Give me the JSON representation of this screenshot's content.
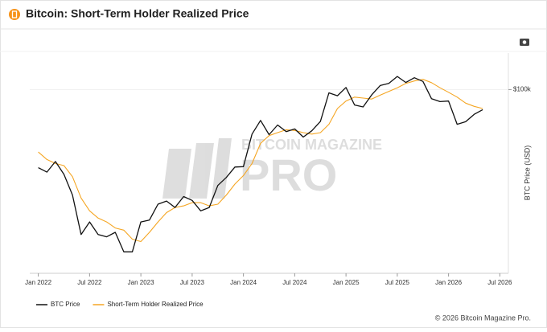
{
  "chart_data": {
    "type": "line",
    "title": "Bitcoin: Short-Term Holder Realized Price",
    "y_label": "BTC Price (USD)",
    "watermark": [
      "BITCOIN MAGAZINE",
      "PRO"
    ],
    "footer": "© 2026 Bitcoin Magazine Pro.",
    "log_scale": true,
    "x": [
      "2022-01",
      "2022-02",
      "2022-03",
      "2022-04",
      "2022-05",
      "2022-06",
      "2022-07",
      "2022-08",
      "2022-09",
      "2022-10",
      "2022-11",
      "2022-12",
      "2023-01",
      "2023-02",
      "2023-03",
      "2023-04",
      "2023-05",
      "2023-06",
      "2023-07",
      "2023-08",
      "2023-09",
      "2023-10",
      "2023-11",
      "2023-12",
      "2024-01",
      "2024-02",
      "2024-03",
      "2024-04",
      "2024-05",
      "2024-06",
      "2024-07",
      "2024-08",
      "2024-09",
      "2024-10",
      "2024-11",
      "2024-12",
      "2025-01",
      "2025-02",
      "2025-03",
      "2025-04",
      "2025-05",
      "2025-06",
      "2025-07",
      "2025-08",
      "2025-09",
      "2025-10",
      "2025-11",
      "2025-12",
      "2026-01",
      "2026-02",
      "2026-03",
      "2026-04",
      "2026-05"
    ],
    "series": [
      {
        "name": "BTC Price",
        "color": "#111111",
        "values": [
          42000,
          40000,
          45000,
          39000,
          31000,
          20000,
          23000,
          20000,
          19500,
          20500,
          16500,
          16500,
          23000,
          23500,
          28000,
          29000,
          27000,
          30500,
          29200,
          26000,
          27000,
          34500,
          37700,
          42300,
          42500,
          61000,
          71000,
          60600,
          67500,
          62700,
          64600,
          59000,
          63300,
          70200,
          96400,
          93400,
          102400,
          84300,
          82500,
          94200,
          104600,
          107100,
          115700,
          108200,
          114000,
          109500,
          90400,
          87500,
          88000,
          68000,
          70000,
          76000,
          80000
        ]
      },
      {
        "name": "Short-Term Holder Realized Price",
        "color": "#f5a623",
        "values": [
          50000,
          46000,
          44000,
          43000,
          38000,
          30000,
          26000,
          24000,
          23000,
          21500,
          21000,
          19000,
          18500,
          20500,
          23000,
          25500,
          27000,
          27500,
          28500,
          28500,
          27500,
          28000,
          31000,
          35000,
          38500,
          44000,
          55000,
          60000,
          62000,
          64000,
          63500,
          62000,
          61000,
          62000,
          68000,
          81000,
          88000,
          92000,
          91000,
          90000,
          94000,
          98000,
          102000,
          107000,
          110000,
          112000,
          108000,
          102000,
          97000,
          92000,
          86000,
          83000,
          81000
        ]
      }
    ],
    "xlim": [
      "2021-12",
      "2026-08"
    ],
    "xticks": [
      {
        "value": "2022-01",
        "label": "Jan 2022"
      },
      {
        "value": "2022-07",
        "label": "Jul 2022"
      },
      {
        "value": "2023-01",
        "label": "Jan 2023"
      },
      {
        "value": "2023-07",
        "label": "Jul 2023"
      },
      {
        "value": "2024-01",
        "label": "Jan 2024"
      },
      {
        "value": "2024-07",
        "label": "Jul 2024"
      },
      {
        "value": "2025-01",
        "label": "Jan 2025"
      },
      {
        "value": "2025-07",
        "label": "Jul 2025"
      },
      {
        "value": "2026-01",
        "label": "Jan 2026"
      },
      {
        "value": "2026-07",
        "label": "Jul 2026"
      }
    ],
    "ylim": [
      13000,
      150000
    ],
    "yticks": [
      {
        "value": 100000,
        "label": "$100k"
      }
    ],
    "grid": true,
    "legend": "bottom-left"
  }
}
